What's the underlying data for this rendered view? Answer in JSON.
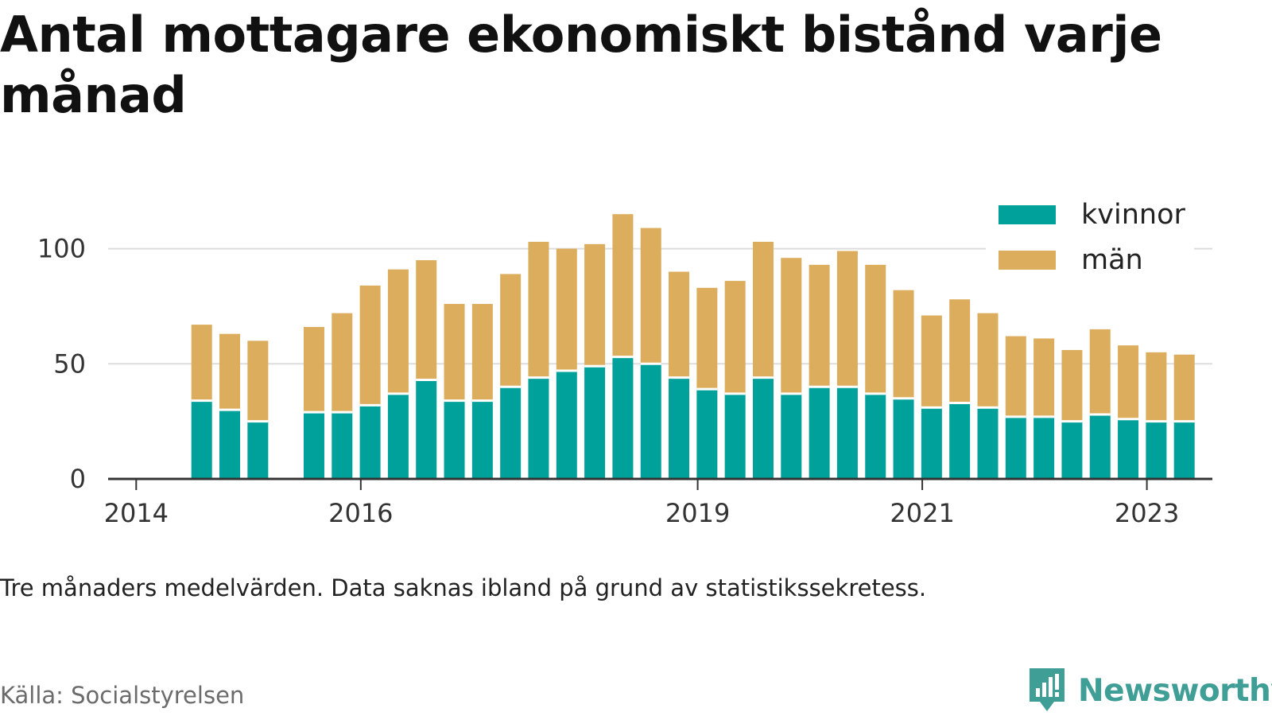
{
  "title": "Antal mottagare ekonomiskt bistånd varje månad",
  "note": "Tre månaders medelvärden. Data saknas ibland på grund av statistikssekretess.",
  "source": "Källa: Socialstyrelsen",
  "brand": {
    "name": "Newsworthy",
    "icon": "newsworthy-logo-icon"
  },
  "colors": {
    "kvinnor": "#00a19a",
    "man": "#dbad5c",
    "grid": "#dddddd",
    "axis": "#333333",
    "brand": "#3f9e95"
  },
  "chart_data": {
    "type": "bar",
    "stacked": true,
    "title": "Antal mottagare ekonomiskt bistånd varje månad",
    "xlabel": "",
    "ylabel": "",
    "ylim": [
      0,
      120
    ],
    "yticks": [
      0,
      50,
      100
    ],
    "xlim": [
      "2013-10",
      "2023-08"
    ],
    "xticks": [
      {
        "date": "2014-01",
        "label": "2014"
      },
      {
        "date": "2016-01",
        "label": "2016"
      },
      {
        "date": "2019-01",
        "label": "2019"
      },
      {
        "date": "2021-01",
        "label": "2021"
      },
      {
        "date": "2023-01",
        "label": "2023"
      }
    ],
    "grid": true,
    "legend_position": "top-right",
    "categories": [
      "2014-08",
      "2014-11",
      "2015-02",
      "2015-08",
      "2015-11",
      "2016-02",
      "2016-05",
      "2016-08",
      "2016-11",
      "2017-02",
      "2017-05",
      "2017-08",
      "2017-11",
      "2018-02",
      "2018-05",
      "2018-08",
      "2018-11",
      "2019-02",
      "2019-05",
      "2019-08",
      "2019-11",
      "2020-02",
      "2020-05",
      "2020-08",
      "2020-11",
      "2021-02",
      "2021-05",
      "2021-08",
      "2021-11",
      "2022-02",
      "2022-05",
      "2022-08",
      "2022-11",
      "2023-02",
      "2023-05"
    ],
    "series": [
      {
        "name": "kvinnor",
        "color": "#00a19a",
        "values": [
          34,
          30,
          25,
          29,
          29,
          32,
          37,
          43,
          34,
          34,
          40,
          44,
          47,
          49,
          53,
          50,
          44,
          39,
          37,
          44,
          37,
          40,
          40,
          37,
          35,
          31,
          33,
          31,
          27,
          27,
          25,
          28,
          26,
          25,
          25
        ]
      },
      {
        "name": "män",
        "color": "#dbad5c",
        "values": [
          33,
          33,
          35,
          37,
          43,
          52,
          54,
          52,
          42,
          42,
          49,
          59,
          53,
          53,
          62,
          59,
          46,
          44,
          49,
          59,
          59,
          53,
          59,
          56,
          47,
          40,
          45,
          41,
          35,
          34,
          31,
          37,
          32,
          30,
          29
        ]
      }
    ]
  }
}
